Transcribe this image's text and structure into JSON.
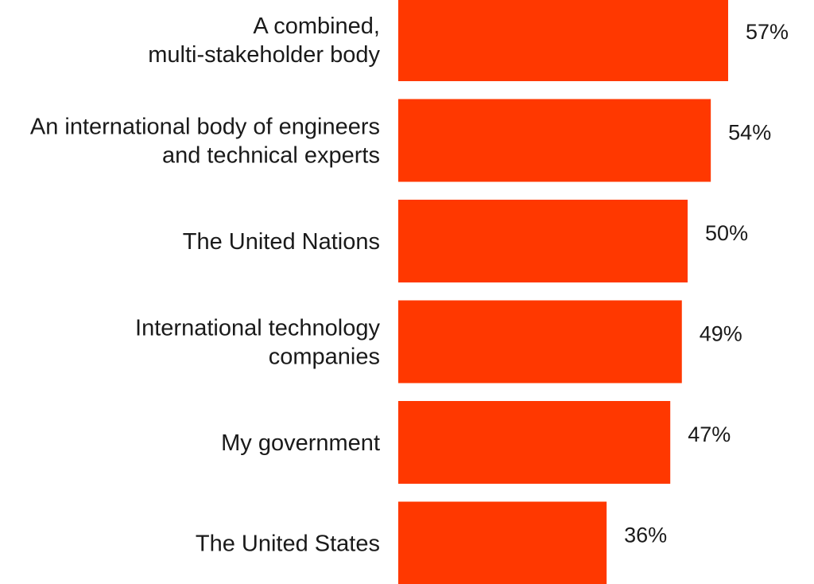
{
  "chart_data": {
    "type": "bar",
    "orientation": "horizontal",
    "categories": [
      [
        "A combined,",
        "multi-stakeholder body"
      ],
      [
        "An international body of engineers",
        "and technical experts"
      ],
      [
        "The United Nations"
      ],
      [
        "International technology",
        "companies"
      ],
      [
        "My government"
      ],
      [
        "The United States"
      ]
    ],
    "values": [
      57,
      54,
      50,
      49,
      47,
      36
    ],
    "value_labels": [
      "57%",
      "54%",
      "50%",
      "49%",
      "47%",
      "36%"
    ],
    "unit": "%",
    "xlim": [
      0,
      57
    ],
    "grid": false,
    "legend": "none",
    "bar_color": "#FF3800"
  }
}
